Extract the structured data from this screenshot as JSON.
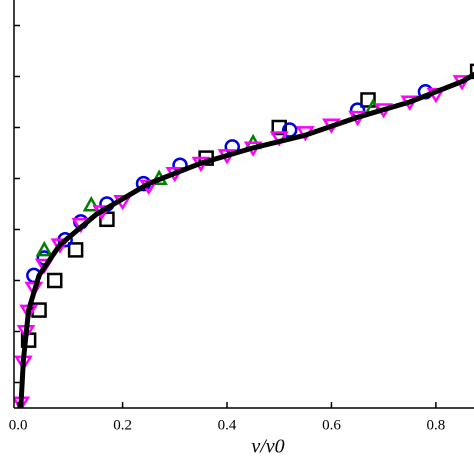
{
  "chart_data": {
    "type": "scatter",
    "x_label": "v/v0",
    "xlim": [
      -0.008,
      0.873
    ],
    "ylim": [
      0,
      8
    ],
    "xticks": [
      {
        "value": 0,
        "label": "0.0"
      },
      0.2,
      0.4,
      0.6,
      0.8
    ],
    "yticks": [
      0.5,
      1.5,
      2.5,
      3.5,
      4.5,
      5.5,
      6.5,
      7.5
    ],
    "line": {
      "color": "#000000",
      "x": [
        0.005,
        0.01,
        0.02,
        0.04,
        0.08,
        0.15,
        0.25,
        0.35,
        0.45,
        0.55,
        0.65,
        0.75,
        0.85,
        0.9
      ],
      "values": [
        0,
        0.94,
        1.92,
        2.6,
        3.2,
        3.8,
        4.4,
        4.8,
        5.1,
        5.35,
        5.7,
        6.0,
        6.4,
        6.7
      ]
    },
    "series": [
      {
        "marker": "square",
        "color": "#000000",
        "x": [
          0.02,
          0.04,
          0.07,
          0.11,
          0.17,
          0.36,
          0.5,
          0.67,
          0.88
        ],
        "values": [
          1.33,
          1.92,
          2.5,
          3.1,
          3.7,
          4.9,
          5.5,
          6.04,
          6.6
        ]
      },
      {
        "marker": "circle",
        "color": "#0000dd",
        "x": [
          0.03,
          0.05,
          0.09,
          0.12,
          0.17,
          0.24,
          0.31,
          0.41,
          0.52,
          0.65,
          0.78
        ],
        "values": [
          2.6,
          2.94,
          3.3,
          3.65,
          4.0,
          4.4,
          4.76,
          5.12,
          5.45,
          5.84,
          6.2
        ]
      },
      {
        "marker": "triangle",
        "color": "#008000",
        "x": [
          0.05,
          0.14,
          0.27,
          0.45,
          0.68
        ],
        "values": [
          3.1,
          3.98,
          4.5,
          5.2,
          5.9
        ]
      },
      {
        "marker": "triangle-down",
        "color": "#ff00ff",
        "x": [
          0.005,
          0.01,
          0.015,
          0.02,
          0.03,
          0.05,
          0.08,
          0.12,
          0.16,
          0.2,
          0.25,
          0.3,
          0.35,
          0.4,
          0.45,
          0.5,
          0.55,
          0.6,
          0.65,
          0.7,
          0.75,
          0.8,
          0.85
        ],
        "values": [
          0.1,
          0.9,
          1.5,
          1.9,
          2.35,
          2.8,
          3.2,
          3.6,
          3.85,
          4.05,
          4.35,
          4.6,
          4.8,
          4.95,
          5.1,
          5.3,
          5.4,
          5.55,
          5.7,
          5.85,
          6.0,
          6.15,
          6.4
        ]
      }
    ]
  }
}
